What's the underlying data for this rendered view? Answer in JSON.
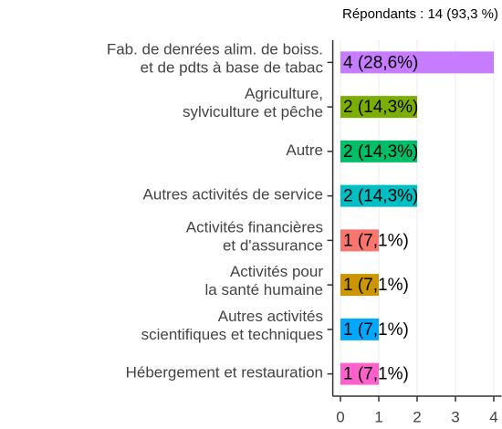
{
  "chart_data": {
    "type": "barh",
    "subtitle": "Répondants : 14 (93,3 %)",
    "categories": [
      [
        "Fab. de denrées alim. de boiss.",
        "et de pdts à base de tabac"
      ],
      [
        "Agriculture,",
        "sylviculture et pêche"
      ],
      [
        "Autre"
      ],
      [
        "Autres activités de service"
      ],
      [
        "Activités financières",
        "et d'assurance"
      ],
      [
        "Activités pour",
        "la santé humaine"
      ],
      [
        "Autres activités",
        "scientifiques et techniques"
      ],
      [
        "Hébergement et restauration"
      ]
    ],
    "values": [
      4,
      2,
      2,
      2,
      1,
      1,
      1,
      1
    ],
    "value_labels": [
      "4 (28,6%)",
      "2 (14,3%)",
      "2 (14,3%)",
      "2 (14,3%)",
      "1 (7,1%)",
      "1 (7,1%)",
      "1 (7,1%)",
      "1 (7,1%)"
    ],
    "colors": [
      "#c77cff",
      "#7cae00",
      "#00be67",
      "#00bfc4",
      "#f8766d",
      "#cd9600",
      "#00a9ff",
      "#ff61cc"
    ],
    "xlim": [
      -0.2,
      4.2
    ],
    "xticks": [
      0,
      1,
      2,
      3,
      4
    ],
    "grid": true
  }
}
